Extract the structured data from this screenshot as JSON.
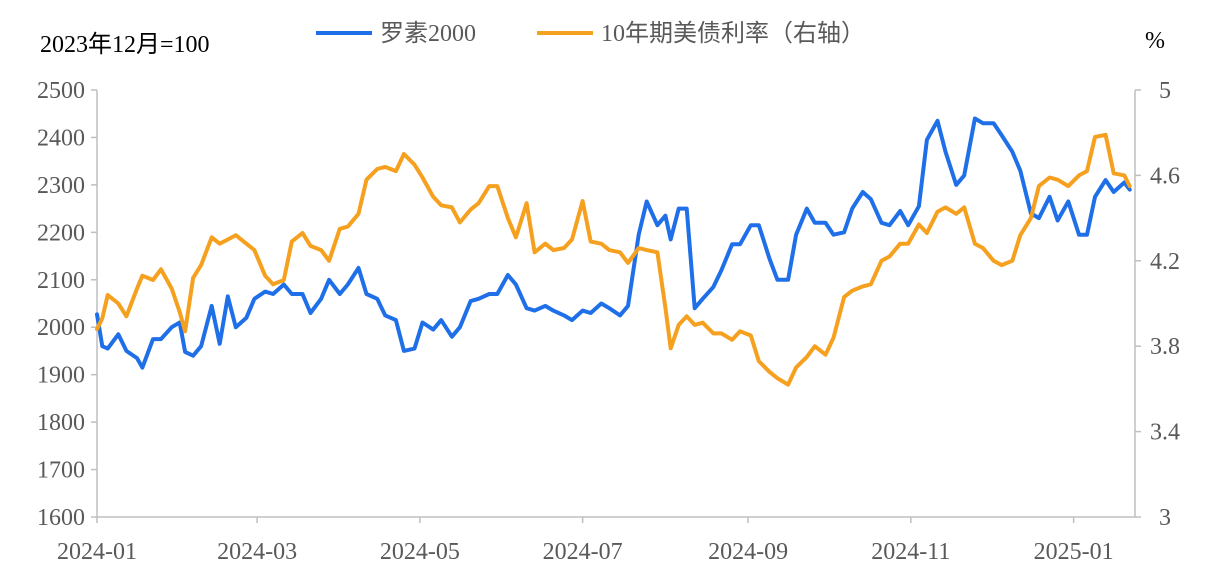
{
  "chart_data": {
    "type": "line",
    "left_note": "2023年12月=100",
    "right_note": "%",
    "x_ticks": [
      "2024-01",
      "2024-03",
      "2024-05",
      "2024-07",
      "2024-09",
      "2024-11",
      "2025-01"
    ],
    "left_axis": {
      "min": 1600,
      "max": 2500,
      "ticks": [
        1600,
        1700,
        1800,
        1900,
        2000,
        2100,
        2200,
        2300,
        2400,
        2500
      ]
    },
    "right_axis": {
      "min": 3,
      "max": 5,
      "ticks": [
        "3",
        "3.4",
        "3.8",
        "4.2",
        "4.6",
        "5"
      ]
    },
    "legend_position": "top",
    "grid": false,
    "series": [
      {
        "name": "罗素2000",
        "axis": "left",
        "color": "#1F6FE8",
        "points": [
          [
            "2024-01-01",
            2027
          ],
          [
            "2024-01-03",
            1960
          ],
          [
            "2024-01-05",
            1955
          ],
          [
            "2024-01-09",
            1985
          ],
          [
            "2024-01-12",
            1950
          ],
          [
            "2024-01-16",
            1935
          ],
          [
            "2024-01-18",
            1915
          ],
          [
            "2024-01-22",
            1975
          ],
          [
            "2024-01-25",
            1975
          ],
          [
            "2024-01-29",
            2000
          ],
          [
            "2024-02-01",
            2010
          ],
          [
            "2024-02-03",
            1948
          ],
          [
            "2024-02-06",
            1940
          ],
          [
            "2024-02-09",
            1960
          ],
          [
            "2024-02-13",
            2045
          ],
          [
            "2024-02-16",
            1965
          ],
          [
            "2024-02-19",
            2065
          ],
          [
            "2024-02-22",
            2000
          ],
          [
            "2024-02-26",
            2020
          ],
          [
            "2024-02-29",
            2060
          ],
          [
            "2024-03-04",
            2075
          ],
          [
            "2024-03-07",
            2070
          ],
          [
            "2024-03-11",
            2090
          ],
          [
            "2024-03-14",
            2070
          ],
          [
            "2024-03-18",
            2070
          ],
          [
            "2024-03-21",
            2030
          ],
          [
            "2024-03-25",
            2060
          ],
          [
            "2024-03-28",
            2100
          ],
          [
            "2024-04-01",
            2070
          ],
          [
            "2024-04-04",
            2090
          ],
          [
            "2024-04-08",
            2125
          ],
          [
            "2024-04-11",
            2070
          ],
          [
            "2024-04-15",
            2060
          ],
          [
            "2024-04-18",
            2025
          ],
          [
            "2024-04-22",
            2015
          ],
          [
            "2024-04-25",
            1950
          ],
          [
            "2024-04-29",
            1955
          ],
          [
            "2024-05-02",
            2010
          ],
          [
            "2024-05-06",
            1995
          ],
          [
            "2024-05-09",
            2015
          ],
          [
            "2024-05-13",
            1980
          ],
          [
            "2024-05-16",
            2000
          ],
          [
            "2024-05-20",
            2055
          ],
          [
            "2024-05-23",
            2060
          ],
          [
            "2024-05-27",
            2070
          ],
          [
            "2024-05-30",
            2070
          ],
          [
            "2024-06-03",
            2110
          ],
          [
            "2024-06-06",
            2090
          ],
          [
            "2024-06-10",
            2040
          ],
          [
            "2024-06-13",
            2035
          ],
          [
            "2024-06-17",
            2045
          ],
          [
            "2024-06-20",
            2035
          ],
          [
            "2024-06-24",
            2025
          ],
          [
            "2024-06-27",
            2015
          ],
          [
            "2024-07-01",
            2035
          ],
          [
            "2024-07-04",
            2030
          ],
          [
            "2024-07-08",
            2050
          ],
          [
            "2024-07-11",
            2040
          ],
          [
            "2024-07-15",
            2025
          ],
          [
            "2024-07-18",
            2045
          ],
          [
            "2024-07-22",
            2195
          ],
          [
            "2024-07-25",
            2265
          ],
          [
            "2024-07-29",
            2215
          ],
          [
            "2024-08-01",
            2235
          ],
          [
            "2024-08-03",
            2185
          ],
          [
            "2024-08-06",
            2250
          ],
          [
            "2024-08-09",
            2250
          ],
          [
            "2024-08-12",
            2040
          ],
          [
            "2024-08-15",
            2060
          ],
          [
            "2024-08-19",
            2085
          ],
          [
            "2024-08-22",
            2120
          ],
          [
            "2024-08-26",
            2175
          ],
          [
            "2024-08-29",
            2175
          ],
          [
            "2024-09-02",
            2215
          ],
          [
            "2024-09-05",
            2215
          ],
          [
            "2024-09-09",
            2145
          ],
          [
            "2024-09-12",
            2100
          ],
          [
            "2024-09-16",
            2100
          ],
          [
            "2024-09-19",
            2195
          ],
          [
            "2024-09-23",
            2250
          ],
          [
            "2024-09-26",
            2220
          ],
          [
            "2024-09-30",
            2220
          ],
          [
            "2024-10-03",
            2195
          ],
          [
            "2024-10-07",
            2200
          ],
          [
            "2024-10-10",
            2250
          ],
          [
            "2024-10-14",
            2285
          ],
          [
            "2024-10-17",
            2270
          ],
          [
            "2024-10-21",
            2220
          ],
          [
            "2024-10-24",
            2215
          ],
          [
            "2024-10-28",
            2245
          ],
          [
            "2024-10-31",
            2215
          ],
          [
            "2024-11-04",
            2255
          ],
          [
            "2024-11-07",
            2395
          ],
          [
            "2024-11-11",
            2435
          ],
          [
            "2024-11-14",
            2370
          ],
          [
            "2024-11-18",
            2300
          ],
          [
            "2024-11-21",
            2320
          ],
          [
            "2024-11-25",
            2440
          ],
          [
            "2024-11-28",
            2430
          ],
          [
            "2024-12-02",
            2430
          ],
          [
            "2024-12-05",
            2405
          ],
          [
            "2024-12-09",
            2370
          ],
          [
            "2024-12-12",
            2330
          ],
          [
            "2024-12-16",
            2240
          ],
          [
            "2024-12-19",
            2230
          ],
          [
            "2024-12-23",
            2275
          ],
          [
            "2024-12-26",
            2225
          ],
          [
            "2024-12-30",
            2265
          ],
          [
            "2025-01-03",
            2195
          ],
          [
            "2025-01-06",
            2195
          ],
          [
            "2025-01-09",
            2275
          ],
          [
            "2025-01-13",
            2310
          ],
          [
            "2025-01-16",
            2285
          ],
          [
            "2025-01-20",
            2305
          ],
          [
            "2025-01-22",
            2290
          ]
        ]
      },
      {
        "name": "10年期美债利率（右轴）",
        "axis": "right",
        "color": "#F5A01E",
        "points": [
          [
            "2024-01-01",
            3.88
          ],
          [
            "2024-01-03",
            3.93
          ],
          [
            "2024-01-05",
            4.04
          ],
          [
            "2024-01-09",
            4.0
          ],
          [
            "2024-01-12",
            3.94
          ],
          [
            "2024-01-16",
            4.07
          ],
          [
            "2024-01-18",
            4.13
          ],
          [
            "2024-01-22",
            4.11
          ],
          [
            "2024-01-25",
            4.16
          ],
          [
            "2024-01-29",
            4.07
          ],
          [
            "2024-02-01",
            3.96
          ],
          [
            "2024-02-03",
            3.87
          ],
          [
            "2024-02-06",
            4.12
          ],
          [
            "2024-02-09",
            4.18
          ],
          [
            "2024-02-13",
            4.31
          ],
          [
            "2024-02-16",
            4.28
          ],
          [
            "2024-02-19",
            4.3
          ],
          [
            "2024-02-22",
            4.32
          ],
          [
            "2024-02-26",
            4.28
          ],
          [
            "2024-02-29",
            4.25
          ],
          [
            "2024-03-04",
            4.13
          ],
          [
            "2024-03-07",
            4.09
          ],
          [
            "2024-03-11",
            4.11
          ],
          [
            "2024-03-14",
            4.29
          ],
          [
            "2024-03-18",
            4.33
          ],
          [
            "2024-03-21",
            4.27
          ],
          [
            "2024-03-25",
            4.25
          ],
          [
            "2024-03-28",
            4.2
          ],
          [
            "2024-04-01",
            4.35
          ],
          [
            "2024-04-04",
            4.36
          ],
          [
            "2024-04-08",
            4.42
          ],
          [
            "2024-04-11",
            4.58
          ],
          [
            "2024-04-15",
            4.63
          ],
          [
            "2024-04-18",
            4.64
          ],
          [
            "2024-04-22",
            4.62
          ],
          [
            "2024-04-25",
            4.7
          ],
          [
            "2024-04-29",
            4.65
          ],
          [
            "2024-05-02",
            4.59
          ],
          [
            "2024-05-06",
            4.5
          ],
          [
            "2024-05-09",
            4.46
          ],
          [
            "2024-05-13",
            4.45
          ],
          [
            "2024-05-16",
            4.38
          ],
          [
            "2024-05-20",
            4.44
          ],
          [
            "2024-05-23",
            4.47
          ],
          [
            "2024-05-27",
            4.55
          ],
          [
            "2024-05-30",
            4.55
          ],
          [
            "2024-06-03",
            4.4
          ],
          [
            "2024-06-06",
            4.31
          ],
          [
            "2024-06-10",
            4.47
          ],
          [
            "2024-06-13",
            4.24
          ],
          [
            "2024-06-17",
            4.28
          ],
          [
            "2024-06-20",
            4.25
          ],
          [
            "2024-06-24",
            4.26
          ],
          [
            "2024-06-27",
            4.3
          ],
          [
            "2024-07-01",
            4.48
          ],
          [
            "2024-07-04",
            4.29
          ],
          [
            "2024-07-08",
            4.28
          ],
          [
            "2024-07-11",
            4.25
          ],
          [
            "2024-07-15",
            4.24
          ],
          [
            "2024-07-18",
            4.19
          ],
          [
            "2024-07-22",
            4.26
          ],
          [
            "2024-07-25",
            4.25
          ],
          [
            "2024-07-29",
            4.24
          ],
          [
            "2024-08-01",
            3.98
          ],
          [
            "2024-08-03",
            3.79
          ],
          [
            "2024-08-06",
            3.9
          ],
          [
            "2024-08-09",
            3.94
          ],
          [
            "2024-08-12",
            3.9
          ],
          [
            "2024-08-15",
            3.91
          ],
          [
            "2024-08-19",
            3.86
          ],
          [
            "2024-08-22",
            3.86
          ],
          [
            "2024-08-26",
            3.83
          ],
          [
            "2024-08-29",
            3.87
          ],
          [
            "2024-09-02",
            3.85
          ],
          [
            "2024-09-05",
            3.73
          ],
          [
            "2024-09-09",
            3.68
          ],
          [
            "2024-09-12",
            3.65
          ],
          [
            "2024-09-16",
            3.62
          ],
          [
            "2024-09-19",
            3.7
          ],
          [
            "2024-09-23",
            3.75
          ],
          [
            "2024-09-26",
            3.8
          ],
          [
            "2024-09-30",
            3.76
          ],
          [
            "2024-10-03",
            3.84
          ],
          [
            "2024-10-07",
            4.03
          ],
          [
            "2024-10-10",
            4.06
          ],
          [
            "2024-10-14",
            4.08
          ],
          [
            "2024-10-17",
            4.09
          ],
          [
            "2024-10-21",
            4.2
          ],
          [
            "2024-10-24",
            4.22
          ],
          [
            "2024-10-28",
            4.28
          ],
          [
            "2024-10-31",
            4.28
          ],
          [
            "2024-11-04",
            4.37
          ],
          [
            "2024-11-07",
            4.33
          ],
          [
            "2024-11-11",
            4.43
          ],
          [
            "2024-11-14",
            4.45
          ],
          [
            "2024-11-18",
            4.42
          ],
          [
            "2024-11-21",
            4.45
          ],
          [
            "2024-11-25",
            4.28
          ],
          [
            "2024-11-28",
            4.26
          ],
          [
            "2024-12-02",
            4.2
          ],
          [
            "2024-12-05",
            4.18
          ],
          [
            "2024-12-09",
            4.2
          ],
          [
            "2024-12-12",
            4.32
          ],
          [
            "2024-12-16",
            4.4
          ],
          [
            "2024-12-19",
            4.55
          ],
          [
            "2024-12-23",
            4.59
          ],
          [
            "2024-12-26",
            4.58
          ],
          [
            "2024-12-30",
            4.55
          ],
          [
            "2025-01-03",
            4.6
          ],
          [
            "2025-01-06",
            4.62
          ],
          [
            "2025-01-09",
            4.78
          ],
          [
            "2025-01-13",
            4.79
          ],
          [
            "2025-01-16",
            4.61
          ],
          [
            "2025-01-20",
            4.6
          ],
          [
            "2025-01-22",
            4.55
          ]
        ]
      }
    ]
  }
}
